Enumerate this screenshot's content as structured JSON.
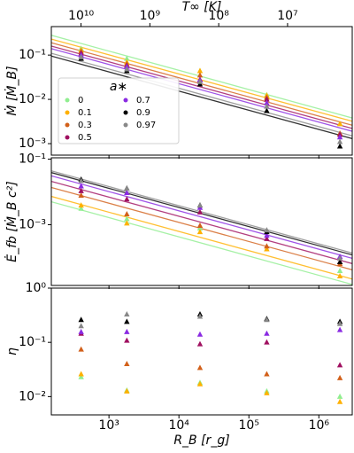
{
  "chart_data": {
    "type": "scatter",
    "log_scale": true,
    "x": [
      400,
      1800,
      20000,
      180000,
      2000000
    ],
    "xlim": [
      150,
      3000000
    ],
    "xticks": [
      {
        "value": 1000,
        "label": "10³"
      },
      {
        "value": 10000,
        "label": "10⁴"
      },
      {
        "value": 100000,
        "label": "10⁵"
      },
      {
        "value": 1000000,
        "label": "10⁶"
      }
    ],
    "xlabel": "R_B [r_g]",
    "x2label": "T∞ [K]",
    "x2lim": [
      27000000000,
      1150000
    ],
    "x2ticks": [
      {
        "value": 10000000000,
        "label": "10¹⁰"
      },
      {
        "value": 1000000000,
        "label": "10⁹"
      },
      {
        "value": 100000000,
        "label": "10⁸"
      },
      {
        "value": 10000000,
        "label": "10⁷"
      }
    ],
    "legend_title": "a∗",
    "legend": "upper left",
    "series": [
      {
        "name": "0",
        "color": "#90ee90"
      },
      {
        "name": "0.1",
        "color": "#ffb000"
      },
      {
        "name": "0.3",
        "color": "#d2601a"
      },
      {
        "name": "0.5",
        "color": "#a01060"
      },
      {
        "name": "0.7",
        "color": "#8a2be2"
      },
      {
        "name": "0.9",
        "color": "#000000"
      },
      {
        "name": "0.97",
        "color": "#888888"
      }
    ],
    "panels": [
      {
        "ylabel": "Ṁ [Ṁ_B]",
        "ylim": [
          0.00055,
          0.44
        ],
        "yticks": [
          {
            "value": 0.1,
            "label": "10⁻¹"
          },
          {
            "value": 0.01,
            "label": "10⁻²"
          },
          {
            "value": 0.001,
            "label": "10⁻³"
          }
        ],
        "series": [
          {
            "values": [
              0.14,
              0.083,
              0.044,
              0.0126,
              0.0028
            ],
            "fit": [
              0.28,
              0.0038
            ]
          },
          {
            "values": [
              0.13,
              0.069,
              0.044,
              0.0122,
              0.0028
            ],
            "fit": [
              0.23,
              0.0032
            ]
          },
          {
            "values": [
              0.12,
              0.063,
              0.035,
              0.011,
              0.0017
            ],
            "fit": [
              0.19,
              0.0026
            ]
          },
          {
            "values": [
              0.11,
              0.058,
              0.028,
              0.01,
              0.0016
            ],
            "fit": [
              0.16,
              0.0022
            ]
          },
          {
            "values": [
              0.1,
              0.055,
              0.027,
              0.0083,
              0.0014
            ],
            "fit": [
              0.14,
              0.0019
            ]
          },
          {
            "values": [
              0.083,
              0.044,
              0.022,
              0.0055,
              0.00087
            ],
            "fit": [
              0.095,
              0.0013
            ]
          },
          {
            "values": [
              0.09,
              0.048,
              0.025,
              0.0069,
              0.0011
            ],
            "fit": [
              0.11,
              0.0015
            ]
          }
        ]
      },
      {
        "ylabel": "Ė_fb [Ṁ_B c²]",
        "ylim": [
          1.4e-05,
          0.11
        ],
        "yticks": [
          {
            "value": 0.1,
            "label": "10⁻¹"
          },
          {
            "value": 0.001,
            "label": "10⁻³"
          }
        ],
        "series": [
          {
            "values": [
              0.0031,
              0.0015,
              0.00078,
              0.00018,
              3.9e-05
            ],
            "fit": [
              0.005,
              1.5e-05
            ]
          },
          {
            "values": [
              0.0039,
              0.0011,
              0.0006,
              0.00018,
              2.7e-05
            ],
            "fit": [
              0.0073,
              2.2e-05
            ]
          },
          {
            "values": [
              0.0078,
              0.0021,
              0.00094,
              0.00022,
              6.4e-05
            ],
            "fit": [
              0.0137,
              4.2e-05
            ]
          },
          {
            "values": [
              0.0107,
              0.006,
              0.0024,
              0.00037,
              7.3e-05
            ],
            "fit": [
              0.021,
              6.5e-05
            ]
          },
          {
            "values": [
              0.015,
              0.0094,
              0.0033,
              0.00047,
              0.000106
            ],
            "fit": [
              0.031,
              9.4e-05
            ]
          },
          {
            "values": [
              0.024,
              0.0128,
              0.0039,
              0.0006,
              7.3e-05
            ],
            "fit": [
              0.039,
              0.00012
            ]
          },
          {
            "values": [
              0.022,
              0.0128,
              0.0039,
              0.00068,
              9.4e-05
            ],
            "fit": [
              0.044,
              0.000137
            ]
          }
        ]
      },
      {
        "ylabel": "η",
        "ylim": [
          0.0046,
          1
        ],
        "yticks": [
          {
            "value": 1,
            "label": "10⁰"
          },
          {
            "value": 0.1,
            "label": "10⁻¹"
          },
          {
            "value": 0.01,
            "label": "10⁻²"
          }
        ],
        "series": [
          {
            "values": [
              0.023,
              0.013,
              0.018,
              0.0125,
              0.01
            ]
          },
          {
            "values": [
              0.026,
              0.0125,
              0.017,
              0.0116,
              0.008
            ]
          },
          {
            "values": [
              0.074,
              0.04,
              0.034,
              0.026,
              0.022
            ]
          },
          {
            "values": [
              0.145,
              0.108,
              0.093,
              0.1,
              0.038
            ]
          },
          {
            "values": [
              0.156,
              0.156,
              0.14,
              0.145,
              0.17
            ]
          },
          {
            "values": [
              0.26,
              0.24,
              0.33,
              0.27,
              0.24
            ]
          },
          {
            "values": [
              0.2,
              0.33,
              0.3,
              0.26,
              0.22
            ]
          }
        ]
      }
    ]
  }
}
